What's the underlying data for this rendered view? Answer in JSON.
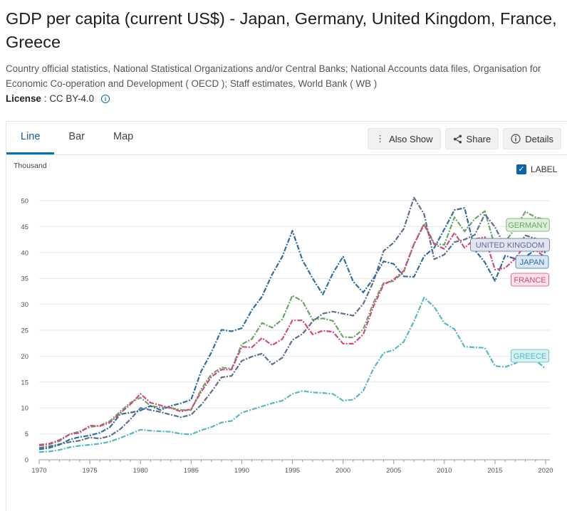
{
  "header": {
    "title": "GDP per capita (current US$) - Japan, Germany, United Kingdom, France, Greece",
    "source": "Country official statistics, National Statistical Organizations and/or Central Banks; National Accounts data files, Organisation for Economic Co-operation and Development ( OECD ); Staff estimates, World Bank ( WB )",
    "license_label": "License",
    "license_value": ": CC BY-4.0",
    "info_icon": "info-icon"
  },
  "tabs": [
    {
      "label": "Line",
      "active": true
    },
    {
      "label": "Bar",
      "active": false
    },
    {
      "label": "Map",
      "active": false
    }
  ],
  "toolbar": {
    "also_show": "Also Show",
    "share": "Share",
    "details": "Details"
  },
  "label_toggle": {
    "label": "LABEL",
    "checked": true
  },
  "chart_data": {
    "type": "line",
    "unit_label": "Thousand",
    "xlim": [
      1970,
      2020
    ],
    "ylim": [
      0,
      50
    ],
    "x_ticks": [
      1970,
      1975,
      1980,
      1985,
      1990,
      1995,
      2000,
      2005,
      2010,
      2015,
      2020
    ],
    "y_ticks": [
      0,
      5,
      10,
      15,
      20,
      25,
      30,
      35,
      40,
      45,
      50
    ],
    "grid": true,
    "legend": "end-labels",
    "x": [
      1970,
      1971,
      1972,
      1973,
      1974,
      1975,
      1976,
      1977,
      1978,
      1979,
      1980,
      1981,
      1982,
      1983,
      1984,
      1985,
      1986,
      1987,
      1988,
      1989,
      1990,
      1991,
      1992,
      1993,
      1994,
      1995,
      1996,
      1997,
      1998,
      1999,
      2000,
      2001,
      2002,
      2003,
      2004,
      2005,
      2006,
      2007,
      2008,
      2009,
      2010,
      2011,
      2012,
      2013,
      2014,
      2015,
      2016,
      2017,
      2018,
      2019,
      2020
    ],
    "series": [
      {
        "name": "GERMANY",
        "color": "#6aa665",
        "label_bg": "#dff0db",
        "values": [
          2.7,
          3.0,
          3.6,
          4.9,
          5.5,
          6.3,
          6.6,
          7.5,
          9.3,
          11.0,
          12.0,
          10.4,
          10.1,
          10.0,
          9.6,
          9.6,
          13.6,
          16.5,
          17.8,
          17.6,
          22.3,
          23.3,
          26.4,
          25.5,
          27.1,
          31.7,
          30.6,
          27.0,
          27.3,
          26.8,
          23.7,
          23.6,
          25.2,
          30.3,
          34.1,
          34.5,
          36.3,
          41.6,
          45.6,
          41.7,
          41.5,
          46.8,
          44.1,
          46.5,
          48.0,
          41.1,
          42.1,
          44.6,
          47.9,
          46.8,
          46.3
        ]
      },
      {
        "name": "UNITED KINGDOM",
        "color": "#5d6f8e",
        "label_bg": "#e2e4f0",
        "values": [
          2.3,
          2.6,
          3.0,
          3.4,
          3.7,
          4.3,
          4.1,
          4.6,
          5.9,
          7.8,
          10.0,
          9.6,
          9.2,
          8.7,
          8.2,
          8.7,
          10.6,
          13.1,
          15.9,
          16.2,
          19.1,
          19.9,
          20.5,
          18.4,
          19.7,
          23.1,
          24.3,
          26.7,
          28.2,
          28.6,
          28.2,
          27.8,
          30.1,
          34.4,
          40.3,
          41.9,
          44.6,
          50.6,
          47.4,
          38.7,
          39.6,
          42.0,
          42.5,
          43.4,
          47.4,
          44.9,
          41.1,
          40.6,
          43.3,
          42.7,
          40.3
        ]
      },
      {
        "name": "JAPAN",
        "color": "#2f6e9e",
        "label_bg": "#d9e7f4",
        "values": [
          2.0,
          2.3,
          2.9,
          3.9,
          4.4,
          4.7,
          5.2,
          6.3,
          8.8,
          9.1,
          9.5,
          10.4,
          9.6,
          10.4,
          10.9,
          11.6,
          17.1,
          20.7,
          25.1,
          24.8,
          25.4,
          28.9,
          31.5,
          35.8,
          39.2,
          44.2,
          38.5,
          35.0,
          31.9,
          36.0,
          39.2,
          34.4,
          32.3,
          35.0,
          38.3,
          37.8,
          35.4,
          35.3,
          39.3,
          40.9,
          44.5,
          48.2,
          48.6,
          40.5,
          38.1,
          34.5,
          39.4,
          38.8,
          39.2,
          40.5,
          40.0
        ]
      },
      {
        "name": "FRANCE",
        "color": "#d14a7f",
        "label_bg": "#fbdfe9",
        "values": [
          2.9,
          3.1,
          3.8,
          4.9,
          5.2,
          6.6,
          6.5,
          7.2,
          9.0,
          10.7,
          12.7,
          11.0,
          10.5,
          10.0,
          9.3,
          9.8,
          13.1,
          16.0,
          17.4,
          17.4,
          21.8,
          21.7,
          23.5,
          22.1,
          23.3,
          26.9,
          26.9,
          24.2,
          24.9,
          24.7,
          22.4,
          22.4,
          24.2,
          29.6,
          33.8,
          34.8,
          36.5,
          41.6,
          45.4,
          41.6,
          40.7,
          43.8,
          40.9,
          42.6,
          43.0,
          36.7,
          37.0,
          38.8,
          41.6,
          40.5,
          39.0
        ]
      },
      {
        "name": "GREECE",
        "color": "#55b9c2",
        "label_bg": "#d5f1f3",
        "values": [
          1.5,
          1.6,
          1.9,
          2.4,
          2.7,
          2.9,
          3.1,
          3.5,
          4.2,
          5.0,
          5.8,
          5.6,
          5.5,
          5.4,
          5.0,
          4.9,
          5.7,
          6.3,
          7.2,
          7.5,
          9.1,
          9.7,
          10.3,
          10.9,
          11.4,
          12.7,
          13.3,
          13.0,
          12.9,
          12.7,
          11.4,
          11.6,
          13.3,
          17.6,
          20.6,
          21.2,
          22.8,
          26.7,
          31.3,
          29.5,
          26.4,
          25.2,
          21.8,
          21.7,
          21.6,
          18.1,
          17.9,
          18.6,
          19.8,
          19.2,
          17.6
        ]
      }
    ]
  }
}
